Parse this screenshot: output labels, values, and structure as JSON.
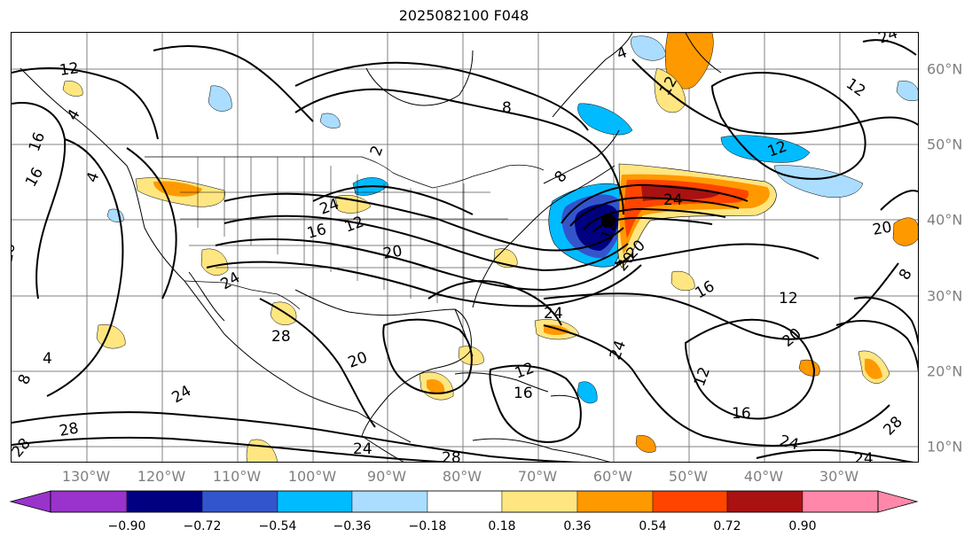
{
  "title": "2025082100 F048",
  "map": {
    "lon_labels": [
      "130°W",
      "120°W",
      "110°W",
      "100°W",
      "90°W",
      "80°W",
      "70°W",
      "60°W",
      "50°W",
      "40°W",
      "30°W"
    ],
    "lat_labels": [
      "60°N",
      "50°N",
      "40°N",
      "30°N",
      "20°N",
      "10°N"
    ],
    "contour_labels": [
      "12",
      "8",
      "4",
      "16",
      "2",
      "24",
      "12",
      "16",
      "24",
      "8",
      "4",
      "12",
      "24",
      "20",
      "16",
      "12",
      "24",
      "20",
      "12",
      "16",
      "28",
      "4",
      "8",
      "24",
      "28",
      "20",
      "12",
      "16",
      "28",
      "24",
      "24",
      "20",
      "12",
      "16",
      "24",
      "28",
      "24",
      "12",
      "12",
      "20",
      "8",
      "28",
      "24",
      "20",
      "16",
      "4"
    ],
    "grid_color": "#808080",
    "coastline_color": "#000000"
  },
  "colorbar": {
    "ticks": [
      "−0.90",
      "−0.72",
      "−0.54",
      "−0.36",
      "−0.18",
      "0.18",
      "0.36",
      "0.54",
      "0.72",
      "0.90"
    ],
    "under_color": "#9933cc",
    "over_color": "#ff88aa",
    "colors": [
      "#000080",
      "#3355cc",
      "#00bbff",
      "#aaddff",
      "#ffffff",
      "#ffe680",
      "#ff9900",
      "#ff4400",
      "#aa1111"
    ]
  }
}
